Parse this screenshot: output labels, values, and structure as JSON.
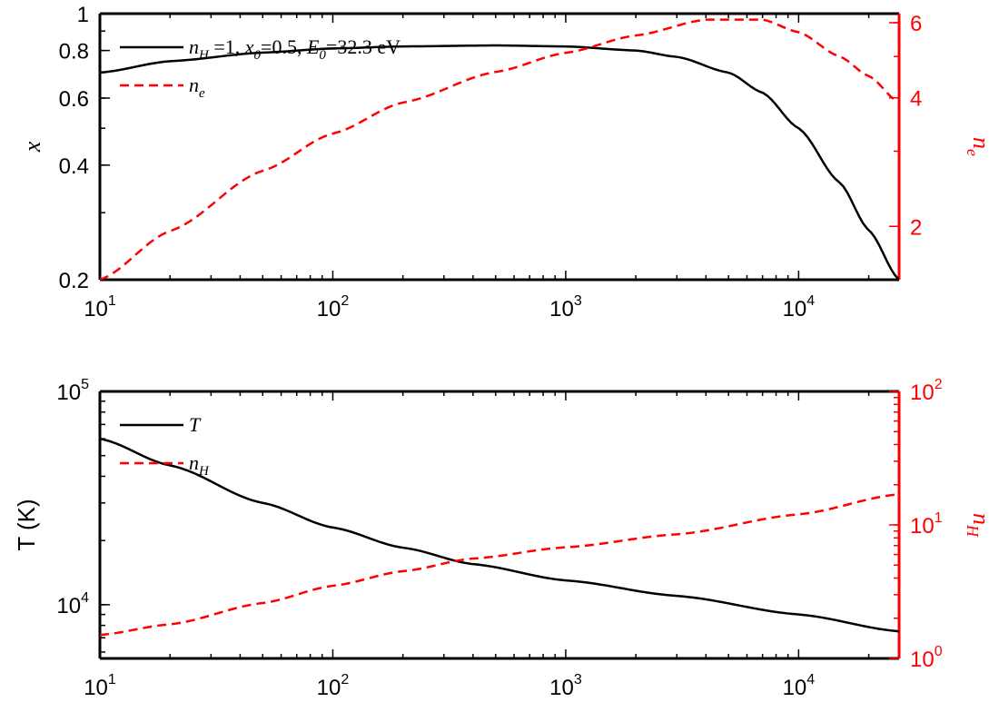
{
  "colors": {
    "black": "#000000",
    "red": "#ff0000"
  },
  "chart_data": [
    {
      "type": "line",
      "xscale": "log",
      "xlim": [
        10,
        27000
      ],
      "x_ticks": [
        {
          "base": "10",
          "exp": "1",
          "value": 10
        },
        {
          "base": "10",
          "exp": "2",
          "value": 100
        },
        {
          "base": "10",
          "exp": "3",
          "value": 1000
        },
        {
          "base": "10",
          "exp": "4",
          "value": 10000
        }
      ],
      "left_axis": {
        "label_math": "x",
        "scale": "log",
        "lim": [
          0.2,
          1
        ],
        "ticks": [
          {
            "label": "0.2",
            "value": 0.2
          },
          {
            "label": "0.4",
            "value": 0.4
          },
          {
            "label": "0.6",
            "value": 0.6
          },
          {
            "label": "0.8",
            "value": 0.8
          },
          {
            "label": "1",
            "value": 1
          }
        ]
      },
      "right_axis": {
        "label_math": "n",
        "label_sub": "e",
        "scale": "log",
        "lim": [
          1.5,
          6.3
        ],
        "ticks": [
          {
            "label": "2",
            "value": 2
          },
          {
            "label": "4",
            "value": 4
          },
          {
            "label": "6",
            "value": 6
          }
        ]
      },
      "series": [
        {
          "name": "n_H =1, x_0=0.5, E_0=32.3 eV",
          "legend": {
            "p1": "n",
            "p1sub": "H",
            "p2": " =1, ",
            "p3": "x",
            "p3sub": "0",
            "p4": "=0.5, ",
            "p5": "E",
            "p5sub": "0",
            "p6": "=32.3 eV"
          },
          "axis": "left",
          "style": "solid",
          "color": "#000000",
          "x": [
            10,
            20,
            50,
            100,
            200,
            500,
            1000,
            2000,
            3000,
            5000,
            7000,
            10000,
            15000,
            20000,
            27000
          ],
          "y": [
            0.7,
            0.75,
            0.79,
            0.81,
            0.82,
            0.825,
            0.82,
            0.8,
            0.77,
            0.7,
            0.62,
            0.5,
            0.36,
            0.27,
            0.2
          ]
        },
        {
          "name": "n_e",
          "legend": {
            "p1": "n",
            "p1sub": "e"
          },
          "axis": "right",
          "style": "dashed",
          "color": "#ff0000",
          "x": [
            10,
            20,
            50,
            100,
            200,
            500,
            1000,
            2000,
            4000,
            7000,
            10000,
            15000,
            20000,
            27000
          ],
          "y": [
            1.5,
            1.95,
            2.7,
            3.3,
            3.9,
            4.6,
            5.1,
            5.6,
            6.1,
            6.1,
            5.7,
            5.0,
            4.5,
            3.9
          ]
        }
      ]
    },
    {
      "type": "line",
      "xscale": "log",
      "xlim": [
        10,
        27000
      ],
      "x_ticks": [
        {
          "base": "10",
          "exp": "1",
          "value": 10
        },
        {
          "base": "10",
          "exp": "2",
          "value": 100
        },
        {
          "base": "10",
          "exp": "3",
          "value": 1000
        },
        {
          "base": "10",
          "exp": "4",
          "value": 10000
        }
      ],
      "left_axis": {
        "label": "T (K)",
        "scale": "log",
        "lim": [
          5600,
          100000
        ],
        "ticks": [
          {
            "base": "10",
            "exp": "4",
            "value": 10000
          },
          {
            "base": "10",
            "exp": "5",
            "value": 100000
          }
        ]
      },
      "right_axis": {
        "label_math": "n",
        "label_sub": "H",
        "scale": "log",
        "lim": [
          1,
          100
        ],
        "ticks": [
          {
            "base": "10",
            "exp": "0",
            "value": 1
          },
          {
            "base": "10",
            "exp": "1",
            "value": 10
          },
          {
            "base": "10",
            "exp": "2",
            "value": 100
          }
        ]
      },
      "series": [
        {
          "name": "T",
          "legend": {
            "p1": "T"
          },
          "axis": "left",
          "style": "solid",
          "color": "#000000",
          "x": [
            10,
            20,
            50,
            100,
            200,
            400,
            1000,
            3000,
            10000,
            27000
          ],
          "y": [
            60000,
            45000,
            30000,
            23000,
            18500,
            15500,
            13000,
            11000,
            9000,
            7500
          ]
        },
        {
          "name": "n_H",
          "legend": {
            "p1": "n",
            "p1sub": "H"
          },
          "axis": "right",
          "style": "dashed",
          "color": "#ff0000",
          "x": [
            10,
            20,
            50,
            100,
            200,
            400,
            1000,
            3000,
            10000,
            27000
          ],
          "y": [
            1.5,
            1.8,
            2.6,
            3.5,
            4.5,
            5.6,
            6.8,
            8.5,
            12,
            17
          ]
        }
      ]
    }
  ]
}
